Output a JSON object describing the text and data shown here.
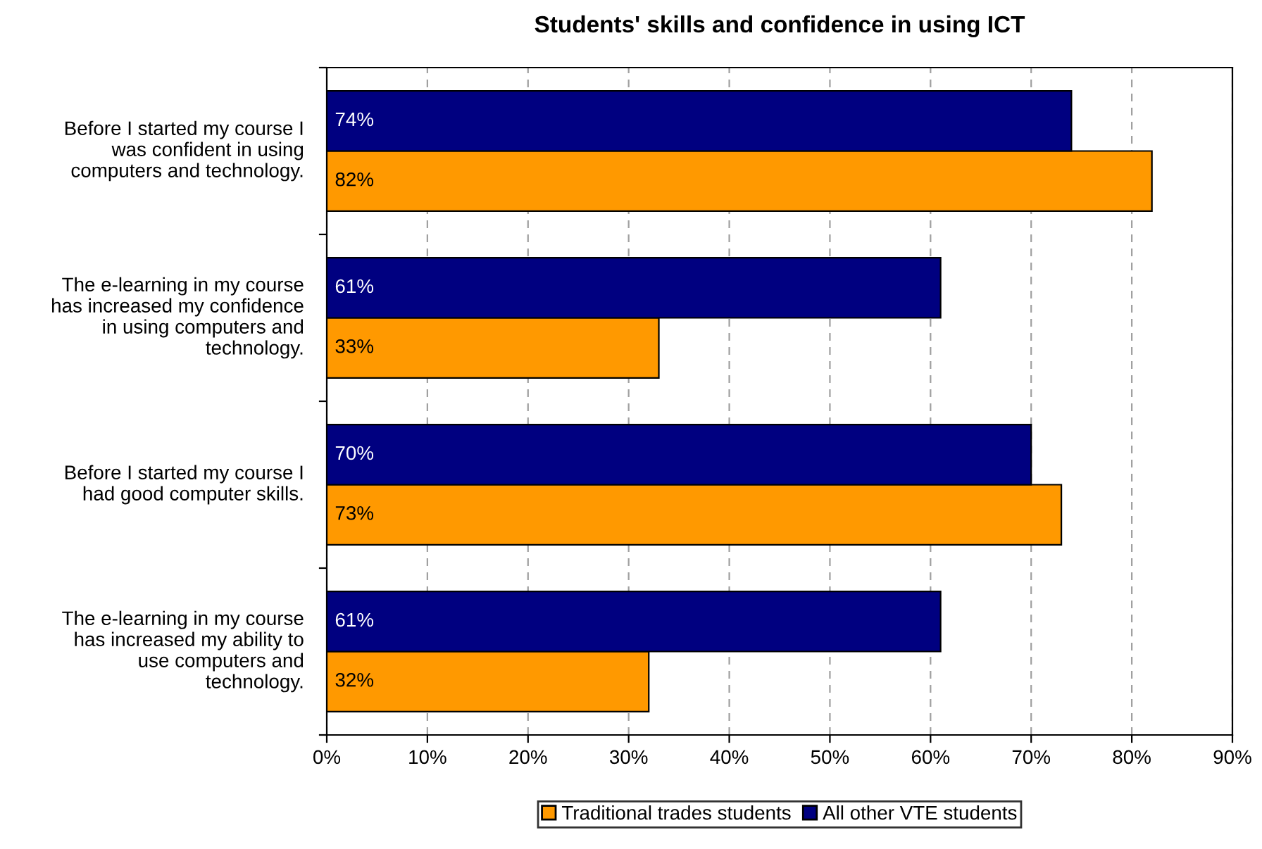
{
  "chart_data": {
    "type": "bar",
    "orientation": "horizontal",
    "title": "Students' skills and confidence in using ICT",
    "categories": [
      "Before I started my course I\nwas confident in using\ncomputers and technology.",
      "The e-learning in my course\nhas increased my confidence\nin using computers and\ntechnology.",
      "Before I started my course I\nhad good computer skills.",
      "The e-learning in my course\nhas increased my ability to\nuse computers and\ntechnology."
    ],
    "series": [
      {
        "name": "Traditional trades students",
        "color": "#ff9900",
        "values": [
          82,
          33,
          73,
          32
        ],
        "value_labels": [
          "82%",
          "33%",
          "73%",
          "32%"
        ]
      },
      {
        "name": "All other VTE students",
        "color": "#000080",
        "values": [
          74,
          61,
          70,
          61
        ],
        "value_labels": [
          "74%",
          "61%",
          "70%",
          "61%"
        ]
      }
    ],
    "xlim": [
      0,
      90
    ],
    "xticks": [
      {
        "value": 0,
        "label": "0%"
      },
      {
        "value": 10,
        "label": "10%"
      },
      {
        "value": 20,
        "label": "20%"
      },
      {
        "value": 30,
        "label": "30%"
      },
      {
        "value": 40,
        "label": "40%"
      },
      {
        "value": 50,
        "label": "50%"
      },
      {
        "value": 60,
        "label": "60%"
      },
      {
        "value": 70,
        "label": "70%"
      },
      {
        "value": 80,
        "label": "80%"
      },
      {
        "value": 90,
        "label": "90%"
      }
    ],
    "grid": "x",
    "legend": "bottom"
  }
}
